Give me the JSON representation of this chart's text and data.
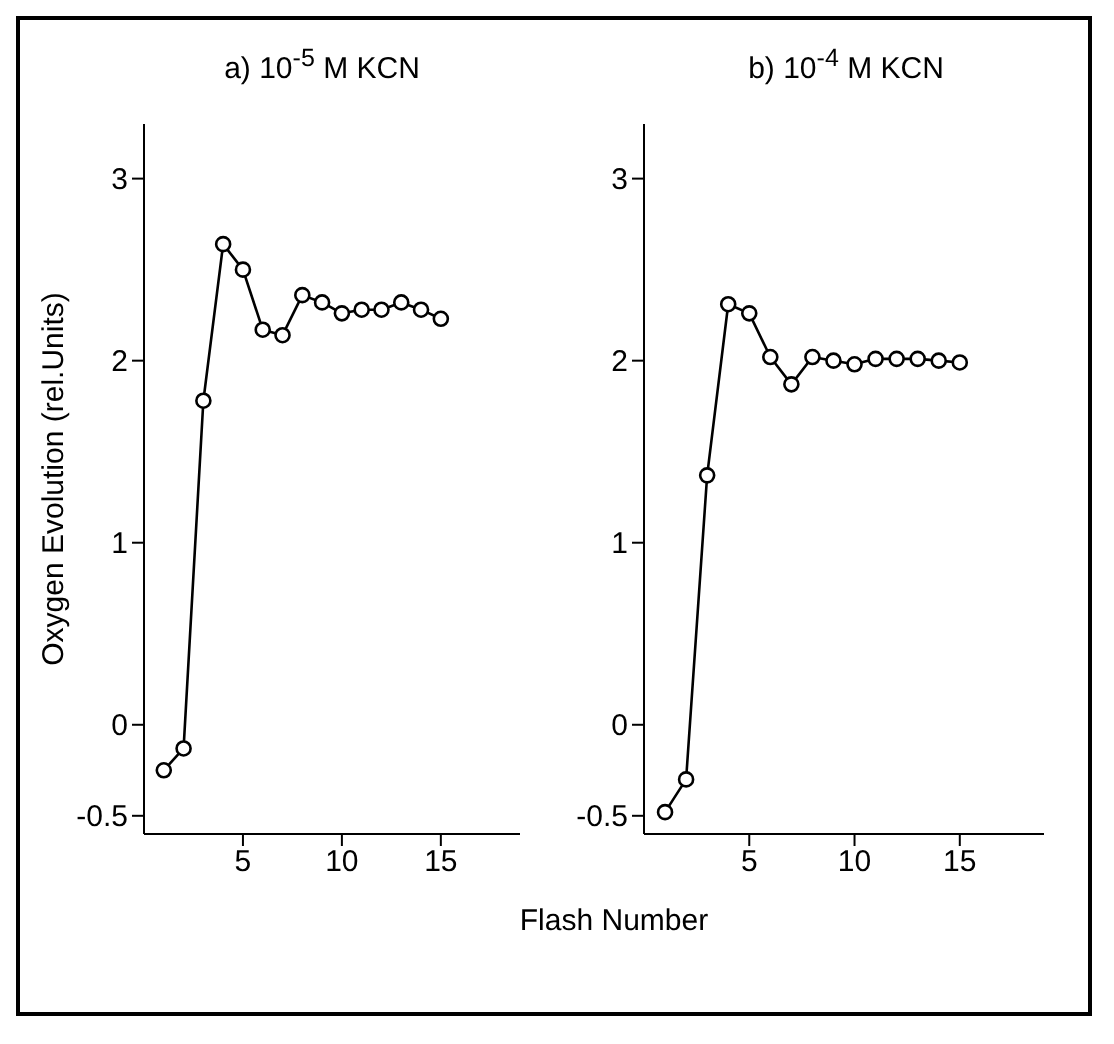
{
  "chart_data": [
    {
      "type": "line",
      "title": "a) 10$^{-5}$ M KCN",
      "ylabel": "Oxygen Evolution (rel.Units)",
      "x": [
        1,
        2,
        3,
        4,
        5,
        6,
        7,
        8,
        9,
        10,
        11,
        12,
        13,
        14,
        15
      ],
      "series": [
        {
          "color": "#000000",
          "values": [
            -0.25,
            -0.13,
            1.78,
            2.64,
            2.5,
            2.17,
            2.14,
            2.36,
            2.32,
            2.26,
            2.28,
            2.28,
            2.32,
            2.28,
            2.23
          ]
        }
      ],
      "xlim": [
        0,
        19
      ],
      "xticks": [
        5,
        10,
        15
      ],
      "ylim": [
        -0.6,
        3.3
      ],
      "yticks": [
        -0.5,
        0,
        1,
        2,
        3
      ],
      "grid": false,
      "legend": false,
      "marker": "circle",
      "line_style": "solid"
    },
    {
      "type": "line",
      "title": "b) 10$^{-4}$ M KCN",
      "xlabel": "Flash Number",
      "x": [
        1,
        2,
        3,
        4,
        5,
        6,
        7,
        8,
        9,
        10,
        11,
        12,
        13,
        14,
        15
      ],
      "series": [
        {
          "color": "#000000",
          "values": [
            -0.48,
            -0.3,
            1.37,
            2.31,
            2.26,
            2.02,
            1.87,
            2.02,
            2.0,
            1.98,
            2.01,
            2.01,
            2.01,
            2.0,
            1.99
          ]
        }
      ],
      "xlim": [
        0,
        19
      ],
      "xticks": [
        5,
        10,
        15
      ],
      "ylim": [
        -0.6,
        3.3
      ],
      "yticks": [
        -0.5,
        0,
        1,
        2,
        3
      ],
      "grid": false,
      "legend": false,
      "marker": "circle",
      "line_style": "solid"
    }
  ]
}
